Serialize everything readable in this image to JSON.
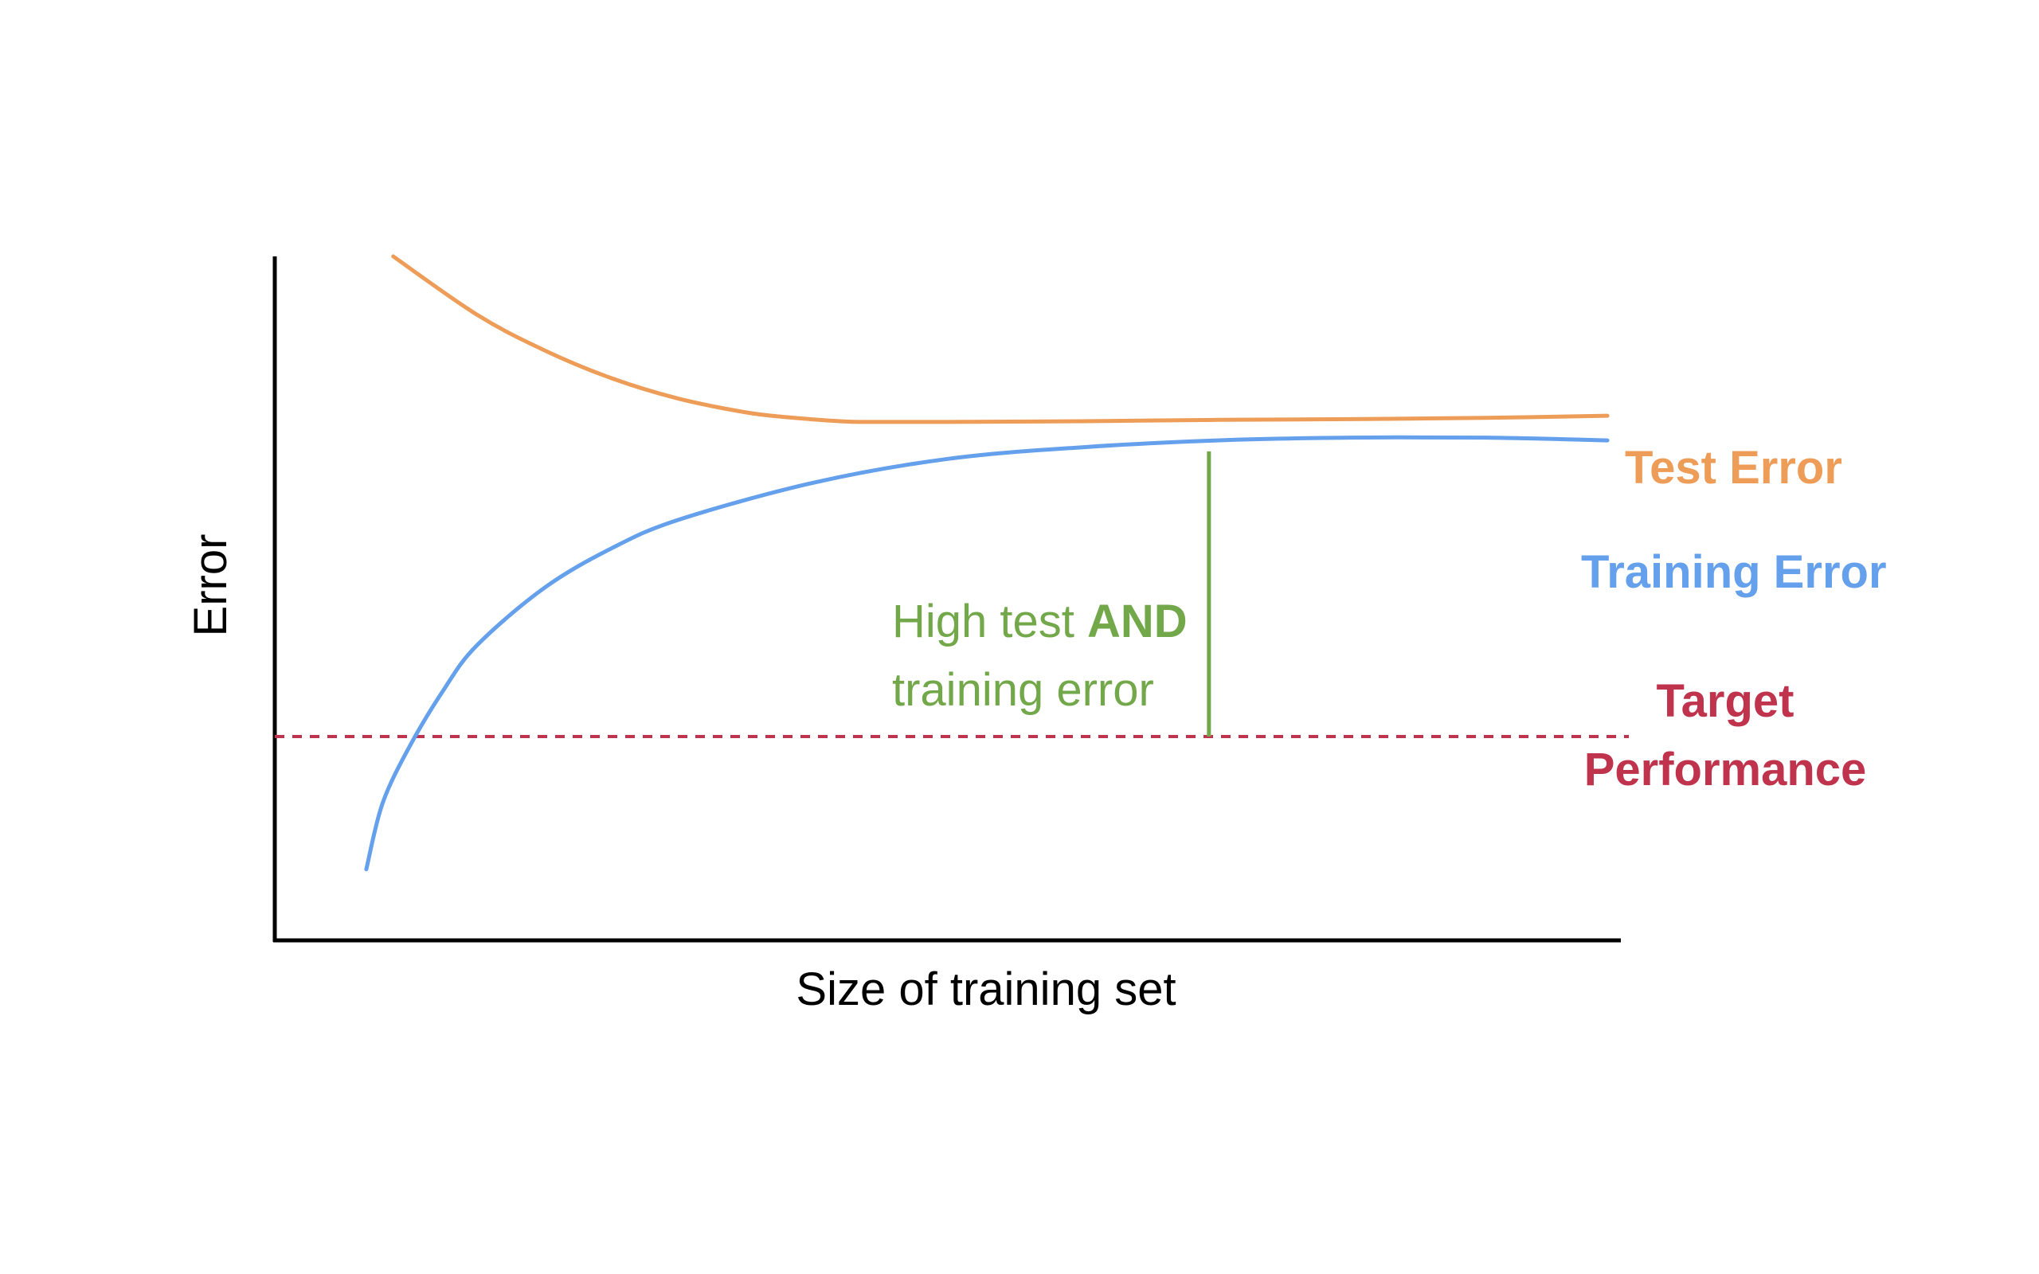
{
  "chart_data": {
    "type": "line",
    "title": "",
    "xlabel": "Size of training set",
    "ylabel": "Error",
    "xlim": [
      0,
      100
    ],
    "ylim": [
      0,
      100
    ],
    "grid": false,
    "legend": "none",
    "series": [
      {
        "name": "Test Error",
        "color": "#ED9D58",
        "x": [
          8.8,
          15,
          20,
          25,
          30,
          35,
          38,
          42,
          44,
          50,
          60,
          70,
          80,
          90,
          99
        ],
        "y": [
          100,
          91.5,
          86.3,
          82.2,
          79.2,
          77.2,
          76.5,
          75.9,
          75.8,
          75.8,
          75.9,
          76.1,
          76.2,
          76.4,
          76.7
        ]
      },
      {
        "name": "Training Error",
        "color": "#64A0EB",
        "x": [
          6.8,
          8,
          10,
          12.5,
          15,
          20,
          25,
          30,
          40,
          50,
          60,
          70,
          80,
          90,
          99
        ],
        "y": [
          10.4,
          20,
          28.3,
          36.5,
          43.1,
          51.5,
          57.3,
          61.5,
          66.9,
          70.4,
          72.1,
          73.1,
          73.5,
          73.5,
          73.1
        ]
      }
    ],
    "reference_line": {
      "name": "Target Performance",
      "label_lines": [
        "Target",
        "Performance"
      ],
      "y": 29.8,
      "style": "dashed",
      "color": "#C0334D"
    },
    "gap_marker": {
      "x": 69.4,
      "y_from": 29.8,
      "y_to": 71.5,
      "color": "#72A849",
      "label_lines": [
        {
          "text": "High test ",
          "bold": "AND"
        },
        {
          "text": "training error"
        }
      ]
    }
  },
  "colors": {
    "axis": "#000000",
    "test": "#ED9D58",
    "training": "#64A0EB",
    "target": "#C0334D",
    "gap": "#72A849"
  }
}
